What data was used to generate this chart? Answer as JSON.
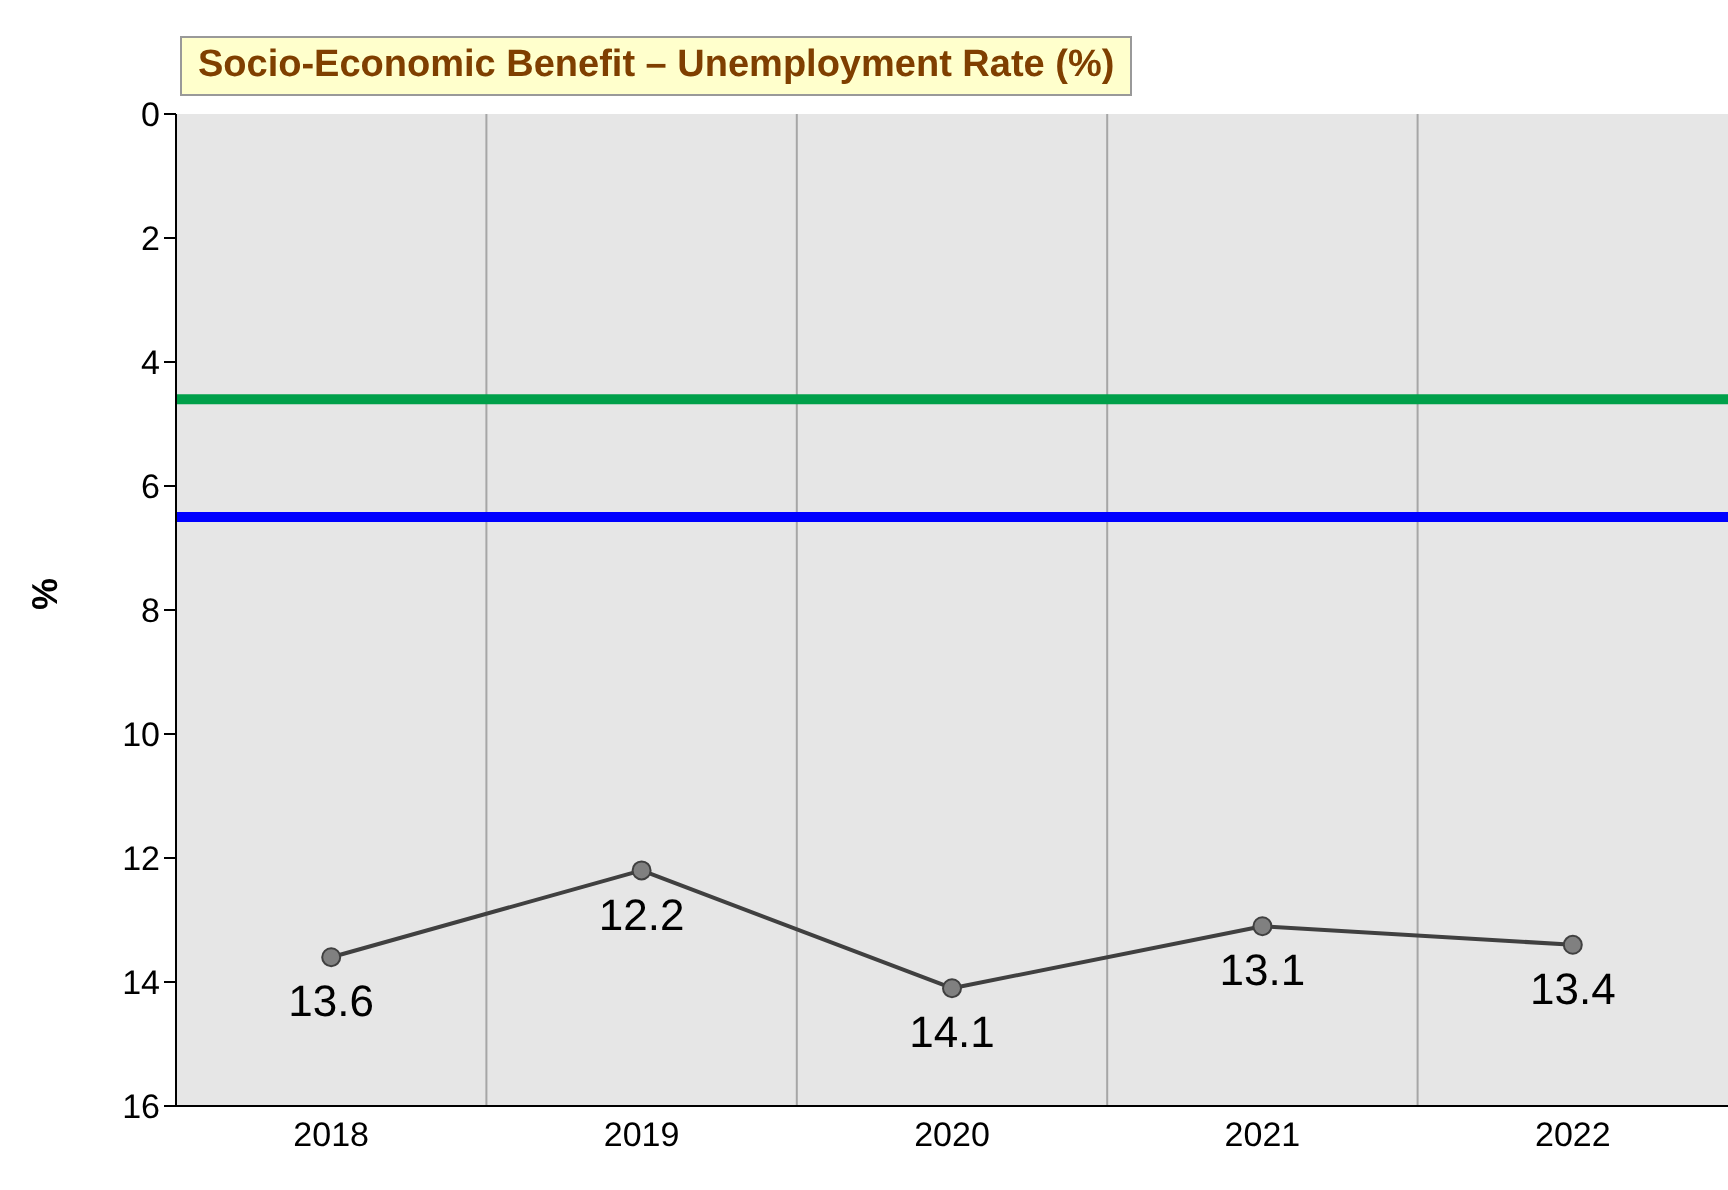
{
  "chart_data": {
    "type": "line",
    "title": "Socio-Economic Benefit – Unemployment Rate (%)",
    "ylabel": "%",
    "categories": [
      "2018",
      "2019",
      "2020",
      "2021",
      "2022"
    ],
    "series": [
      {
        "color": "#404040",
        "values": [
          13.6,
          12.2,
          14.1,
          13.1,
          13.4
        ]
      }
    ],
    "ylim": [
      16,
      0
    ],
    "yticks": [
      0,
      2,
      4,
      6,
      8,
      10,
      12,
      14,
      16
    ],
    "ref_lines": [
      {
        "axis": "y",
        "value": 4.6,
        "color": "#00a04a"
      },
      {
        "axis": "y",
        "value": 6.5,
        "color": "#0000ff"
      }
    ],
    "data_labels": true,
    "grid": "x",
    "marker": "circle",
    "line_style": "solid"
  }
}
